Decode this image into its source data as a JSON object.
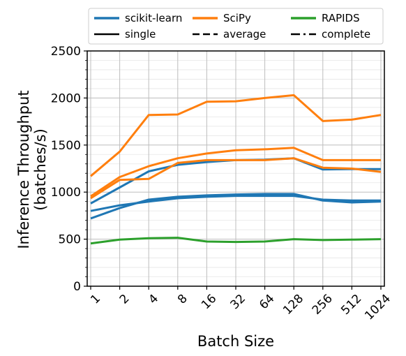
{
  "chart_data": {
    "type": "line",
    "xlabel": "Batch Size",
    "ylabel_lines": [
      "Inference Throughput",
      "(batches/s)"
    ],
    "categories": [
      "1",
      "2",
      "4",
      "8",
      "16",
      "32",
      "64",
      "128",
      "256",
      "512",
      "1024"
    ],
    "ylim": [
      0,
      2500
    ],
    "yticks": [
      0,
      500,
      1000,
      1500,
      2000,
      2500
    ],
    "grid": true,
    "legend_placement": "top (above plot)",
    "legend": {
      "libraries": [
        {
          "name": "scikit-learn",
          "color": "#1f77b4"
        },
        {
          "name": "SciPy",
          "color": "#ff7f0e"
        },
        {
          "name": "RAPIDS",
          "color": "#2ca02c"
        }
      ],
      "linkages": [
        {
          "name": "single",
          "style": "solid"
        },
        {
          "name": "average",
          "style": "dashed"
        },
        {
          "name": "complete",
          "style": "dashdot"
        }
      ]
    },
    "series": [
      {
        "library": "scikit-learn",
        "linkage": "single",
        "values": [
          880,
          1050,
          1220,
          1290,
          1320,
          1340,
          1345,
          1360,
          1240,
          1245,
          1245
        ]
      },
      {
        "library": "scikit-learn",
        "linkage": "average",
        "values": [
          800,
          860,
          900,
          935,
          950,
          960,
          960,
          960,
          920,
          910,
          910
        ]
      },
      {
        "library": "scikit-learn",
        "linkage": "complete",
        "values": [
          720,
          830,
          920,
          950,
          965,
          975,
          980,
          980,
          910,
          890,
          900
        ]
      },
      {
        "library": "SciPy",
        "linkage": "single",
        "values": [
          1170,
          1430,
          1820,
          1825,
          1960,
          1965,
          2000,
          2030,
          1755,
          1770,
          1820
        ]
      },
      {
        "library": "SciPy",
        "linkage": "average",
        "values": [
          935,
          1130,
          1140,
          1310,
          1340,
          1340,
          1340,
          1360,
          1260,
          1250,
          1215
        ]
      },
      {
        "library": "SciPy",
        "linkage": "complete",
        "values": [
          955,
          1160,
          1275,
          1360,
          1410,
          1445,
          1455,
          1470,
          1340,
          1340,
          1340
        ]
      },
      {
        "library": "RAPIDS",
        "linkage": "single",
        "values": [
          455,
          495,
          510,
          515,
          475,
          470,
          475,
          500,
          490,
          495,
          500
        ]
      }
    ]
  }
}
